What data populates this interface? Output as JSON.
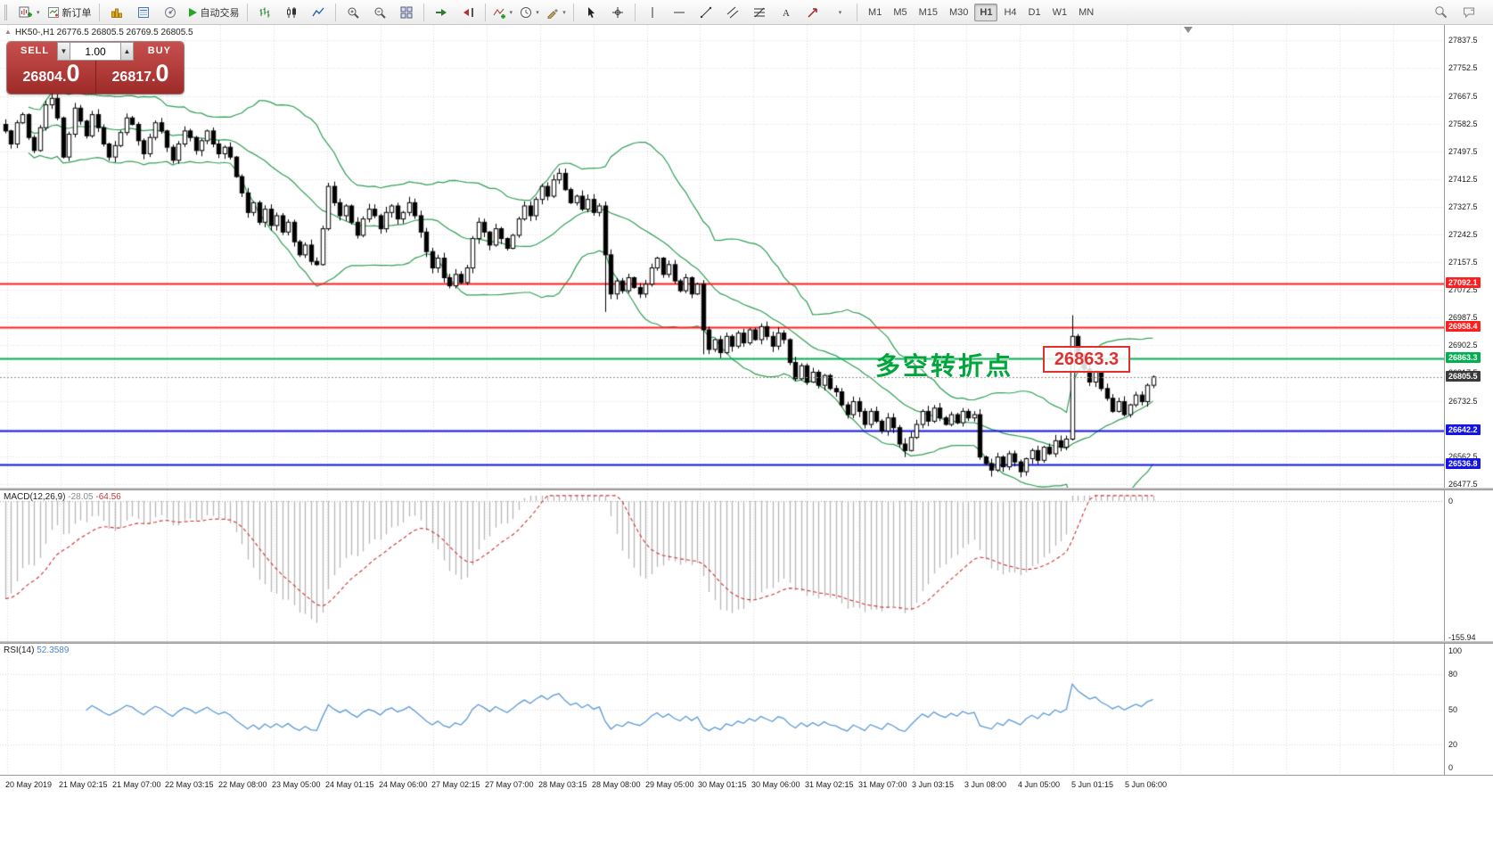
{
  "toolbar": {
    "new_order_label": "新订单",
    "autotrading_label": "自动交易",
    "timeframes": [
      "M1",
      "M5",
      "M15",
      "M30",
      "H1",
      "H4",
      "D1",
      "W1",
      "MN"
    ],
    "active_timeframe": "H1"
  },
  "one_click": {
    "sell_label": "SELL",
    "buy_label": "BUY",
    "volume": "1.00",
    "sell_price_main": "26804.",
    "sell_price_big": "0",
    "buy_price_main": "26817.",
    "buy_price_big": "0"
  },
  "header": {
    "symbol": "HK50-",
    "period": "H1",
    "symbol_line": "HK50-,H1  26776.5 26805.5 26769.5 26805.5"
  },
  "panels": {
    "macd": {
      "label": "MACD(12,26,9)",
      "value_main": "-28.05",
      "value_signal": "-64.56",
      "axis_labels": [
        "0",
        "-155.94"
      ]
    },
    "rsi": {
      "label": "RSI(14)",
      "value": "52.3589",
      "axis_labels": [
        "100",
        "80",
        "50",
        "20",
        "0"
      ]
    }
  },
  "chart_data": {
    "type": "candlestick",
    "symbol": "HK50-",
    "timeframe": "H1",
    "ohlc": {
      "open": 26776.5,
      "high": 26805.5,
      "low": 26769.5,
      "close": 26805.5
    },
    "y_range": [
      26466,
      27885
    ],
    "macd_display_range": [
      -160,
      12
    ],
    "rsi_display_range": [
      0,
      100
    ],
    "y_axis_labels": [
      "27837.5",
      "27752.5",
      "27667.5",
      "27582.5",
      "27497.5",
      "27412.5",
      "27327.5",
      "27242.5",
      "27157.5",
      "27072.5",
      "26987.5",
      "26902.5",
      "26817.5",
      "26732.5",
      "26647.5",
      "26562.5",
      "26477.5"
    ],
    "time_labels": [
      "20 May 2019",
      "21 May 02:15",
      "21 May 07:00",
      "22 May 03:15",
      "22 May 08:00",
      "23 May 05:00",
      "24 May 01:15",
      "24 May 06:00",
      "27 May 02:15",
      "27 May 07:00",
      "28 May 03:15",
      "28 May 08:00",
      "29 May 05:00",
      "30 May 01:15",
      "30 May 06:00",
      "31 May 02:15",
      "31 May 07:00",
      "3 Jun 03:15",
      "3 Jun 08:00",
      "4 Jun 05:00",
      "5 Jun 01:15",
      "5 Jun 06:00"
    ],
    "levels": [
      {
        "label": "27092.1",
        "price": 27092.1,
        "color": "#ff1e1e"
      },
      {
        "label": "26958.4",
        "price": 26958.4,
        "color": "#ff1e1e"
      },
      {
        "label": "26863.3",
        "price": 26863.3,
        "color": "#00b050"
      },
      {
        "label": "26642.2",
        "price": 26642.2,
        "color": "#1414e6"
      },
      {
        "label": "26536.8",
        "price": 26536.8,
        "color": "#1414e6"
      }
    ],
    "current_price": {
      "label": "26805.5",
      "price": 26805.5
    },
    "annotation": {
      "text": "多空转折点",
      "box_value": "26863.3",
      "color": "#00a63c",
      "box_color": "#e03030"
    },
    "candle_colors": {
      "bull": "#ffffff",
      "bear": "#000000",
      "border": "#000000"
    },
    "indicators": {
      "bollinger": {
        "period": 20,
        "deviation": 2,
        "color": "#2f9e55"
      },
      "macd": {
        "fast": 12,
        "slow": 26,
        "signal": 9,
        "histogram_color": "#b6b6b6",
        "signal_color": "#cc3333"
      },
      "rsi": {
        "period": 14,
        "color": "#5b9bd5"
      }
    },
    "closes": [
      27560,
      27520,
      27585,
      27610,
      27540,
      27500,
      27570,
      27640,
      27660,
      27600,
      27480,
      27550,
      27630,
      27590,
      27545,
      27610,
      27570,
      27520,
      27480,
      27515,
      27555,
      27600,
      27580,
      27530,
      27490,
      27540,
      27585,
      27560,
      27510,
      27470,
      27520,
      27560,
      27540,
      27500,
      27530,
      27560,
      27520,
      27490,
      27510,
      27480,
      27420,
      27370,
      27310,
      27340,
      27280,
      27320,
      27270,
      27300,
      27250,
      27280,
      27220,
      27180,
      27210,
      27160,
      27150,
      27260,
      27390,
      27340,
      27300,
      27330,
      27280,
      27240,
      27290,
      27320,
      27300,
      27260,
      27310,
      27330,
      27290,
      27310,
      27340,
      27300,
      27250,
      27190,
      27140,
      27170,
      27110,
      27085,
      27120,
      27095,
      27140,
      27230,
      27280,
      27250,
      27210,
      27260,
      27230,
      27200,
      27240,
      27290,
      27330,
      27300,
      27350,
      27390,
      27360,
      27410,
      27430,
      27380,
      27340,
      27360,
      27320,
      27350,
      27310,
      27330,
      27180,
      27060,
      27100,
      27070,
      27110,
      27080,
      27060,
      27090,
      27140,
      27170,
      27120,
      27150,
      27100,
      27070,
      27110,
      27060,
      27090,
      26950,
      26890,
      26920,
      26880,
      26930,
      26900,
      26940,
      26910,
      26950,
      26920,
      26960,
      26930,
      26900,
      26940,
      26920,
      26850,
      26800,
      26840,
      26790,
      26820,
      26780,
      26810,
      26770,
      26760,
      26720,
      26690,
      26730,
      26700,
      26660,
      26700,
      26670,
      26640,
      26680,
      26650,
      26600,
      26580,
      26620,
      26660,
      26700,
      26670,
      26710,
      26680,
      26660,
      26690,
      26665,
      26700,
      26680,
      26690,
      26560,
      26540,
      26520,
      26560,
      26530,
      26570,
      26545,
      26515,
      26555,
      26580,
      26550,
      26590,
      26570,
      26610,
      26590,
      26615,
      26930,
      26870,
      26830,
      26790,
      26820,
      26770,
      26740,
      26700,
      26730,
      26690,
      26720,
      26750,
      26730,
      26780,
      26805.5
    ],
    "wick_overrides": {
      "8": {
        "high": 27690
      },
      "96": {
        "high": 27445
      },
      "104": {
        "low": 27005
      },
      "121": {
        "low": 26875
      },
      "156": {
        "low": 26560
      },
      "171": {
        "low": 26500
      },
      "176": {
        "low": 26498
      },
      "185": {
        "high": 26995
      }
    }
  }
}
